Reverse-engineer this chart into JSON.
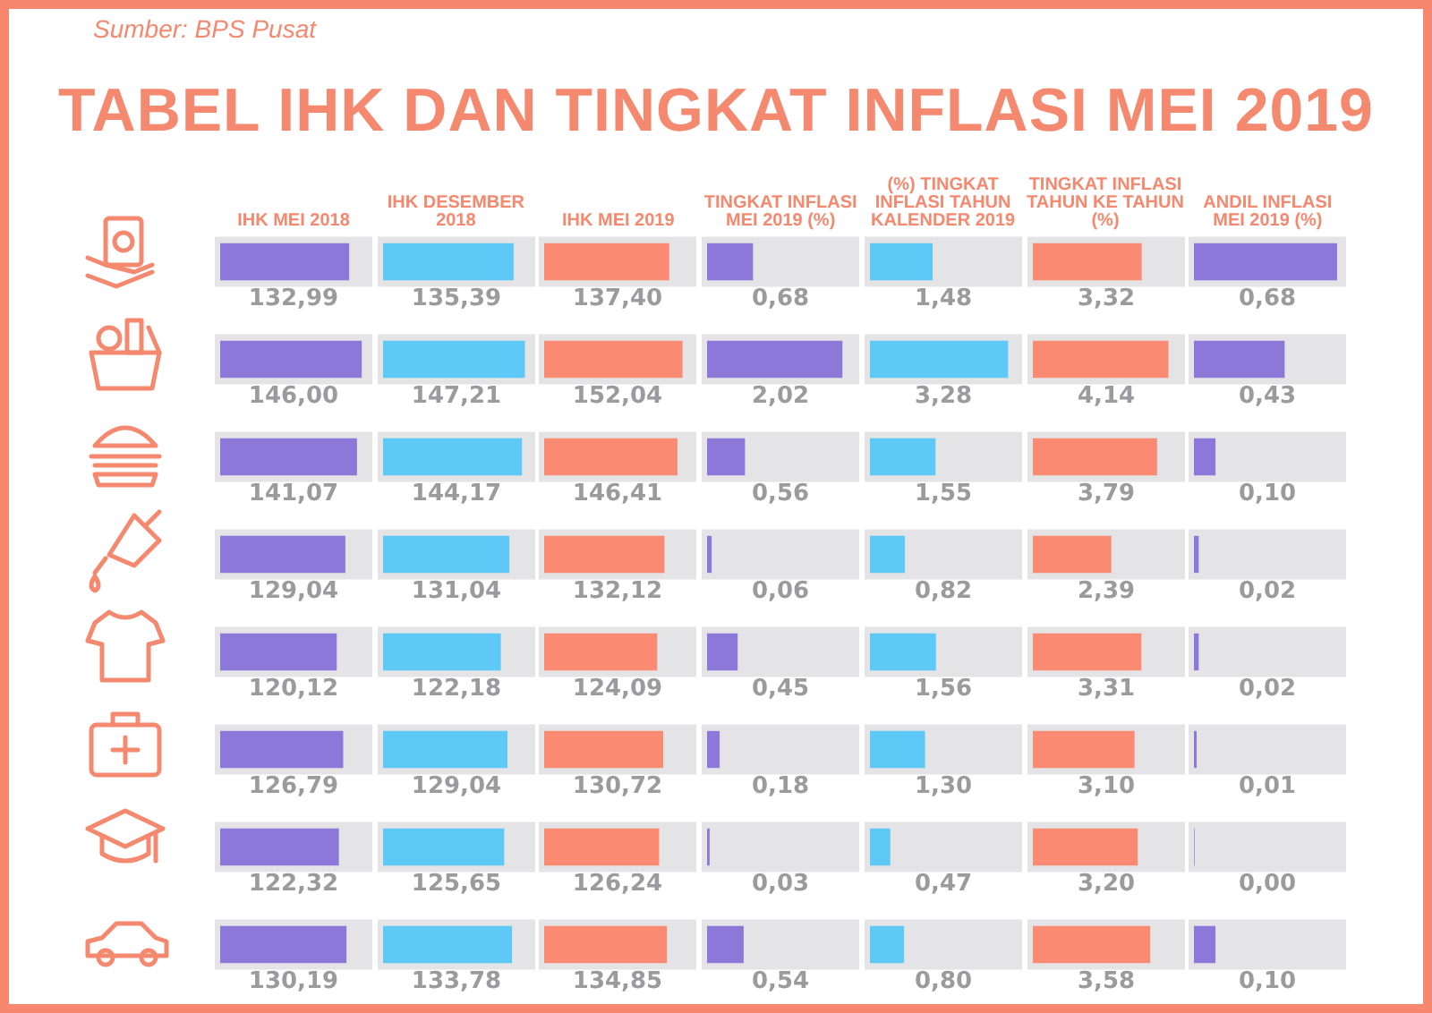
{
  "chart_data": [
    {
      "type": "other",
      "title": "TABEL IHK DAN TINGKAT INFLASI MEI 2019",
      "annotations": [
        "Sumber: BPS Pusat"
      ]
    },
    {
      "type": "bar",
      "orientation": "horizontal",
      "title": "IHK MEI 2018",
      "categories": [
        null,
        null,
        null,
        null,
        null,
        null,
        null,
        null
      ],
      "values": [
        132.99,
        146.0,
        141.07,
        129.04,
        120.12,
        126.79,
        122.32,
        130.19
      ],
      "value_labels": [
        "132,99",
        "146,00",
        "141,07",
        "129,04",
        "120,12",
        "126,79",
        "122,32",
        "130,19"
      ],
      "color": "#8c78d8",
      "xlim": [
        0,
        152
      ],
      "tick_labels": false
    },
    {
      "type": "bar",
      "orientation": "horizontal",
      "title": "IHK DESEMBER 2018",
      "categories": [
        null,
        null,
        null,
        null,
        null,
        null,
        null,
        null
      ],
      "values": [
        135.39,
        147.21,
        144.17,
        131.04,
        122.18,
        129.04,
        125.65,
        133.78
      ],
      "value_labels": [
        "135,39",
        "147,21",
        "144,17",
        "131,04",
        "122,18",
        "129,04",
        "125,65",
        "133,78"
      ],
      "color": "#5ec8f6",
      "xlim": [
        0,
        153
      ],
      "tick_labels": false
    },
    {
      "type": "bar",
      "orientation": "horizontal",
      "title": "IHK MEI 2019",
      "categories": [
        null,
        null,
        null,
        null,
        null,
        null,
        null,
        null
      ],
      "values": [
        137.4,
        152.04,
        146.41,
        132.12,
        124.09,
        130.72,
        126.24,
        134.85
      ],
      "value_labels": [
        "137,40",
        "152,04",
        "146,41",
        "132,12",
        "124,09",
        "130,72",
        "126,24",
        "134,85"
      ],
      "color": "#fa8a72",
      "xlim": [
        0,
        162
      ],
      "tick_labels": false
    },
    {
      "type": "bar",
      "orientation": "horizontal",
      "title": "TINGKAT INFLASI MEI 2019 (%)",
      "categories": [
        null,
        null,
        null,
        null,
        null,
        null,
        null,
        null
      ],
      "values": [
        0.68,
        2.02,
        0.56,
        0.06,
        0.45,
        0.18,
        0.03,
        0.54
      ],
      "value_labels": [
        "0,68",
        "2,02",
        "0,56",
        "0,06",
        "0,45",
        "0,18",
        "0,03",
        "0,54"
      ],
      "color": "#8c78d8",
      "xlim": [
        0,
        2.2
      ],
      "tick_labels": false
    },
    {
      "type": "bar",
      "orientation": "horizontal",
      "title": "(%) TINGKAT INFLASI TAHUN KALENDER 2019",
      "categories": [
        null,
        null,
        null,
        null,
        null,
        null,
        null,
        null
      ],
      "values": [
        1.48,
        3.28,
        1.55,
        0.82,
        1.56,
        1.3,
        0.47,
        0.8
      ],
      "value_labels": [
        "1,48",
        "3,28",
        "1,55",
        "0,82",
        "1,56",
        "1,30",
        "0,47",
        "0,80"
      ],
      "color": "#5ec8f6",
      "xlim": [
        0,
        3.5
      ],
      "tick_labels": false
    },
    {
      "type": "bar",
      "orientation": "horizontal",
      "title": "TINGKAT INFLASI TAHUN KE TAHUN (%)",
      "categories": [
        null,
        null,
        null,
        null,
        null,
        null,
        null,
        null
      ],
      "values": [
        3.32,
        4.14,
        3.79,
        2.39,
        3.31,
        3.1,
        3.2,
        3.58
      ],
      "value_labels": [
        "3,32",
        "4,14",
        "3,79",
        "2,39",
        "3,31",
        "3,10",
        "3,20",
        "3,58"
      ],
      "color": "#fa8a72",
      "xlim": [
        0,
        4.5
      ],
      "tick_labels": false
    },
    {
      "type": "bar",
      "orientation": "horizontal",
      "title": "ANDIL INFLASI MEI 2019 (%)",
      "categories": [
        null,
        null,
        null,
        null,
        null,
        null,
        null,
        null
      ],
      "values": [
        0.68,
        0.43,
        0.1,
        0.02,
        0.02,
        0.01,
        0.0,
        0.1
      ],
      "value_labels": [
        "0,68",
        "0,43",
        "0,10",
        "0,02",
        "0,02",
        "0,01",
        "0,00",
        "0,10"
      ],
      "color": "#8c78d8",
      "xlim": [
        0,
        0.7
      ],
      "tick_labels": false
    }
  ]
}
